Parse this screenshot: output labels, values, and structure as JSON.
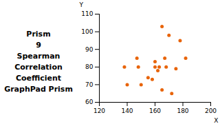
{
  "chart_data": {
    "type": "scatter",
    "x": [
      138,
      140,
      147,
      148,
      150,
      155,
      158,
      160,
      160,
      162,
      163,
      165,
      165,
      167,
      168,
      170,
      172,
      175,
      178,
      182
    ],
    "values": [
      80,
      70,
      85,
      80,
      70,
      74,
      73,
      80,
      83,
      78,
      80,
      103,
      67,
      85,
      80,
      98,
      65,
      79,
      95,
      85
    ],
    "color": "#E8640A",
    "xlabel": "X",
    "ylabel": "Y",
    "xlim": [
      120,
      200
    ],
    "ylim": [
      60,
      110
    ],
    "xticks": [
      120,
      140,
      160,
      180,
      200
    ],
    "yticks": [
      60,
      70,
      80,
      90,
      100,
      110
    ],
    "grid": false,
    "annotations": [
      "Prism",
      "9",
      "Spearman",
      "Correlation",
      "Coefficient",
      "GraphPad Prism"
    ]
  }
}
